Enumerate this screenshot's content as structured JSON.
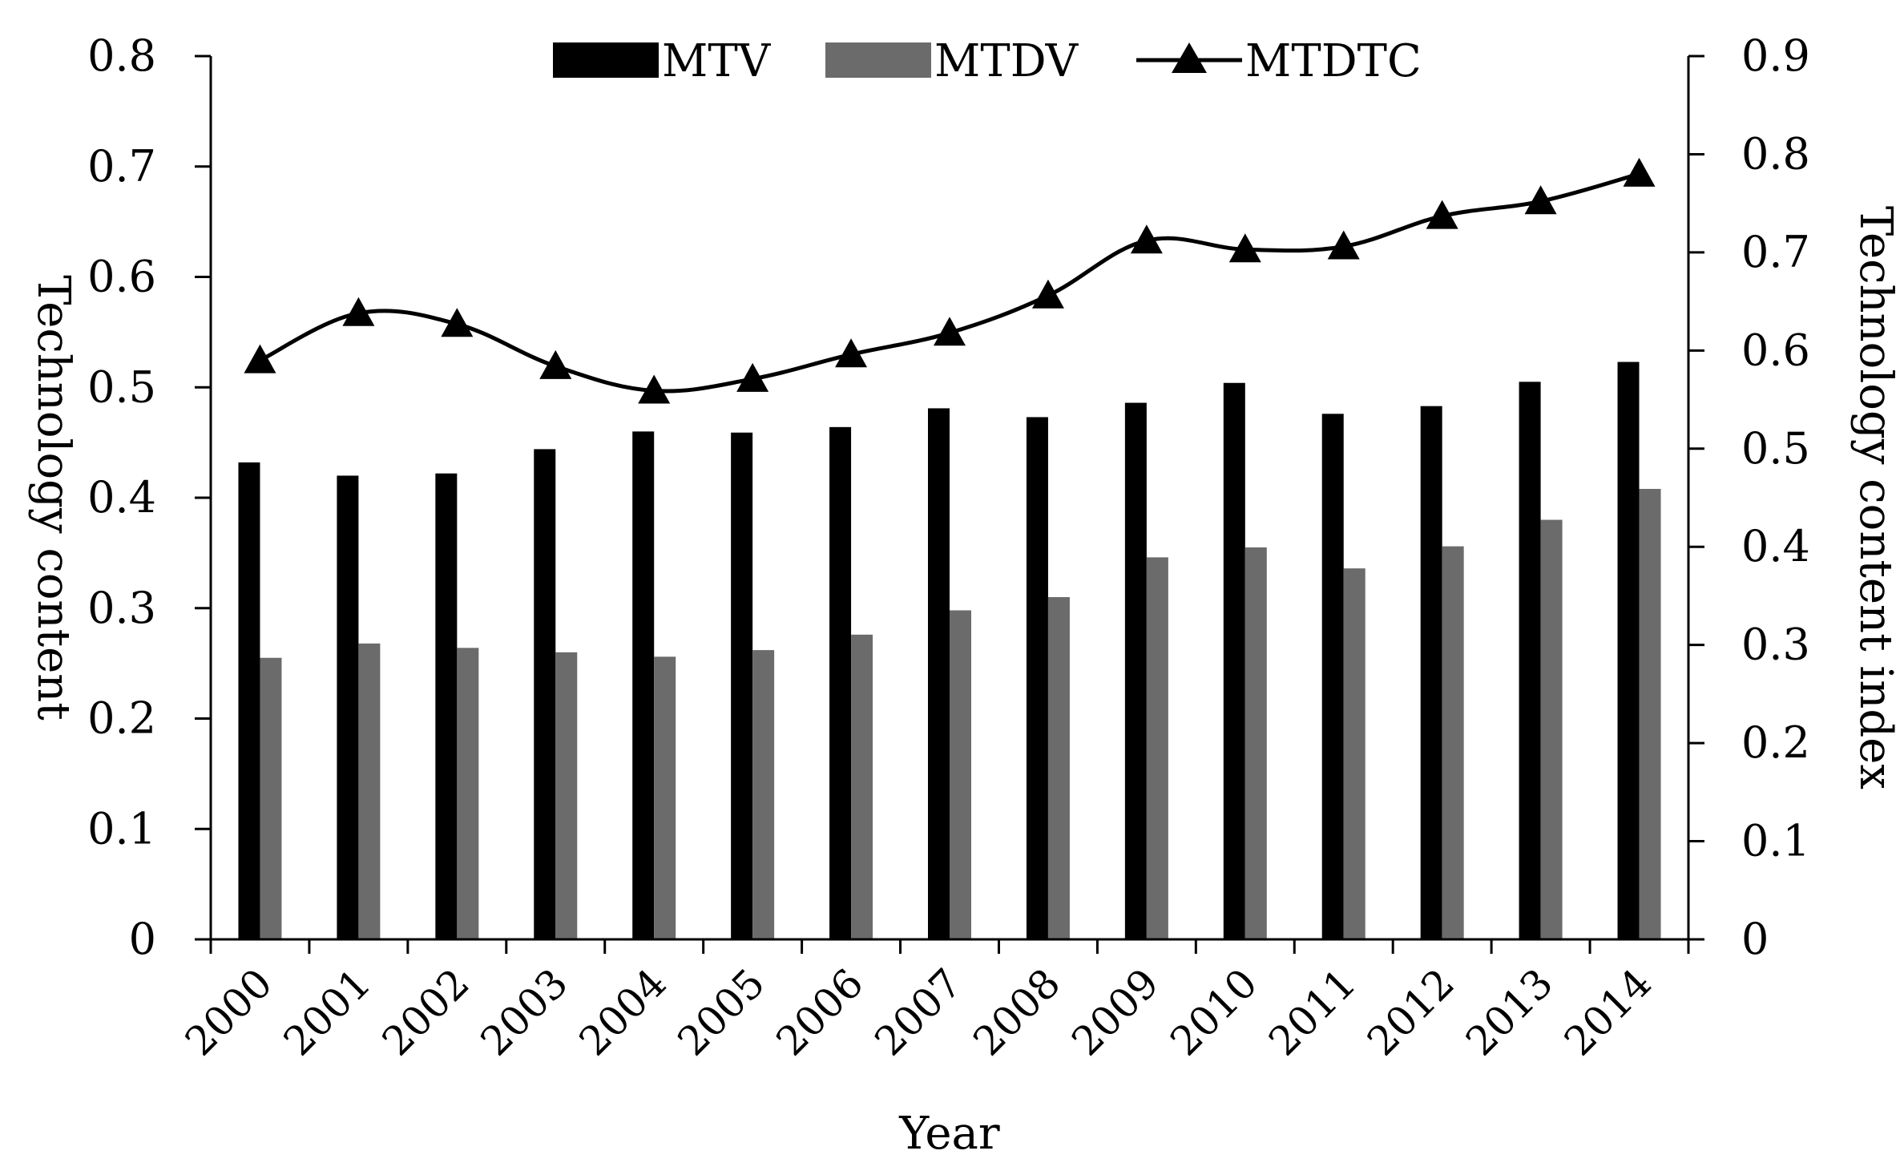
{
  "chart_data": {
    "type": "bar+line",
    "title": "",
    "categories": [
      "2000",
      "2001",
      "2002",
      "2003",
      "2004",
      "2005",
      "2006",
      "2007",
      "2008",
      "2009",
      "2010",
      "2011",
      "2012",
      "2013",
      "2014"
    ],
    "series": [
      {
        "name": "MTV",
        "type": "bar",
        "axis": "left",
        "color": "#000000",
        "values": [
          0.432,
          0.42,
          0.422,
          0.444,
          0.46,
          0.459,
          0.464,
          0.481,
          0.473,
          0.486,
          0.504,
          0.476,
          0.483,
          0.505,
          0.523
        ]
      },
      {
        "name": "MTDV",
        "type": "bar",
        "axis": "left",
        "color": "#6b6b6b",
        "values": [
          0.255,
          0.268,
          0.264,
          0.26,
          0.256,
          0.262,
          0.276,
          0.298,
          0.31,
          0.346,
          0.355,
          0.336,
          0.356,
          0.38,
          0.408
        ]
      },
      {
        "name": "MTDTC",
        "type": "line",
        "axis": "right",
        "color": "#000000",
        "marker": "triangle",
        "values": [
          0.59,
          0.638,
          0.627,
          0.584,
          0.559,
          0.571,
          0.596,
          0.618,
          0.656,
          0.712,
          0.703,
          0.706,
          0.737,
          0.752,
          0.78
        ]
      }
    ],
    "xlabel": "Year",
    "ylabel": "Technology content",
    "y2label": "Technology content index",
    "ylim": [
      0,
      0.8
    ],
    "y2lim": [
      0,
      0.9
    ],
    "yticks": [
      "0",
      "0.1",
      "0.2",
      "0.3",
      "0.4",
      "0.5",
      "0.6",
      "0.7",
      "0.8"
    ],
    "y2ticks": [
      "0",
      "0.1",
      "0.2",
      "0.3",
      "0.4",
      "0.5",
      "0.6",
      "0.7",
      "0.8",
      "0.9"
    ],
    "grid": false,
    "legend": "top-center"
  }
}
